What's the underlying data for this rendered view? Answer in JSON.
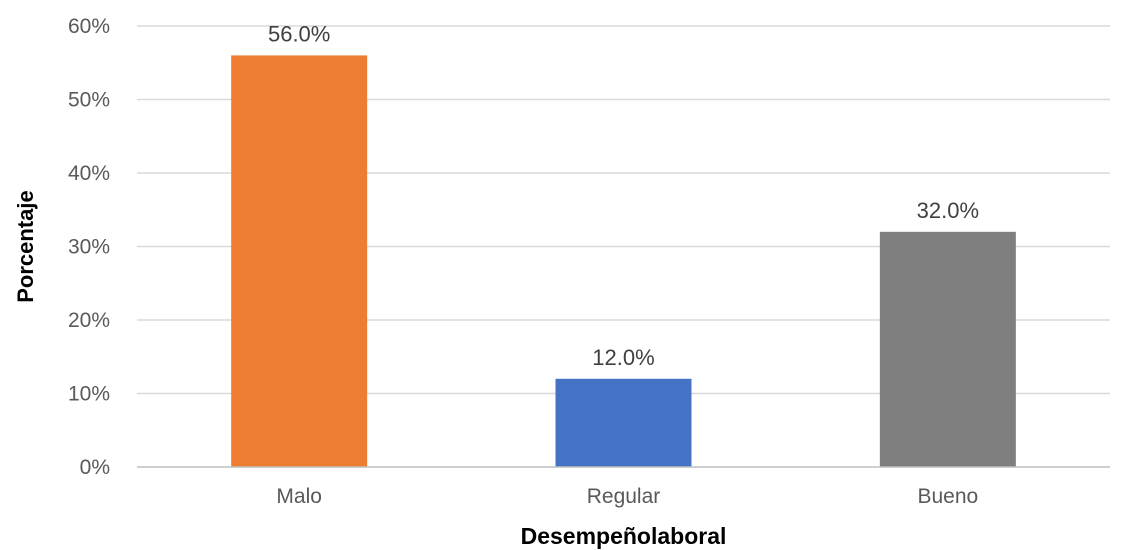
{
  "chart_data": {
    "type": "bar",
    "title": "",
    "xlabel": "Desempeñolaboral",
    "ylabel": "Porcentaje",
    "categories": [
      "Malo",
      "Regular",
      "Bueno"
    ],
    "values": [
      56.0,
      12.0,
      32.0
    ],
    "data_labels": [
      "56.0%",
      "12.0%",
      "32.0%"
    ],
    "colors": [
      "#ED7D31",
      "#4472C4",
      "#7F7F7F"
    ],
    "ylim": [
      0,
      60
    ],
    "yticks": [
      0,
      10,
      20,
      30,
      40,
      50,
      60
    ],
    "ytick_labels": [
      "0%",
      "10%",
      "20%",
      "30%",
      "40%",
      "50%",
      "60%"
    ],
    "grid": true,
    "legend": "none",
    "gridline_color": "#D9D9D9"
  }
}
